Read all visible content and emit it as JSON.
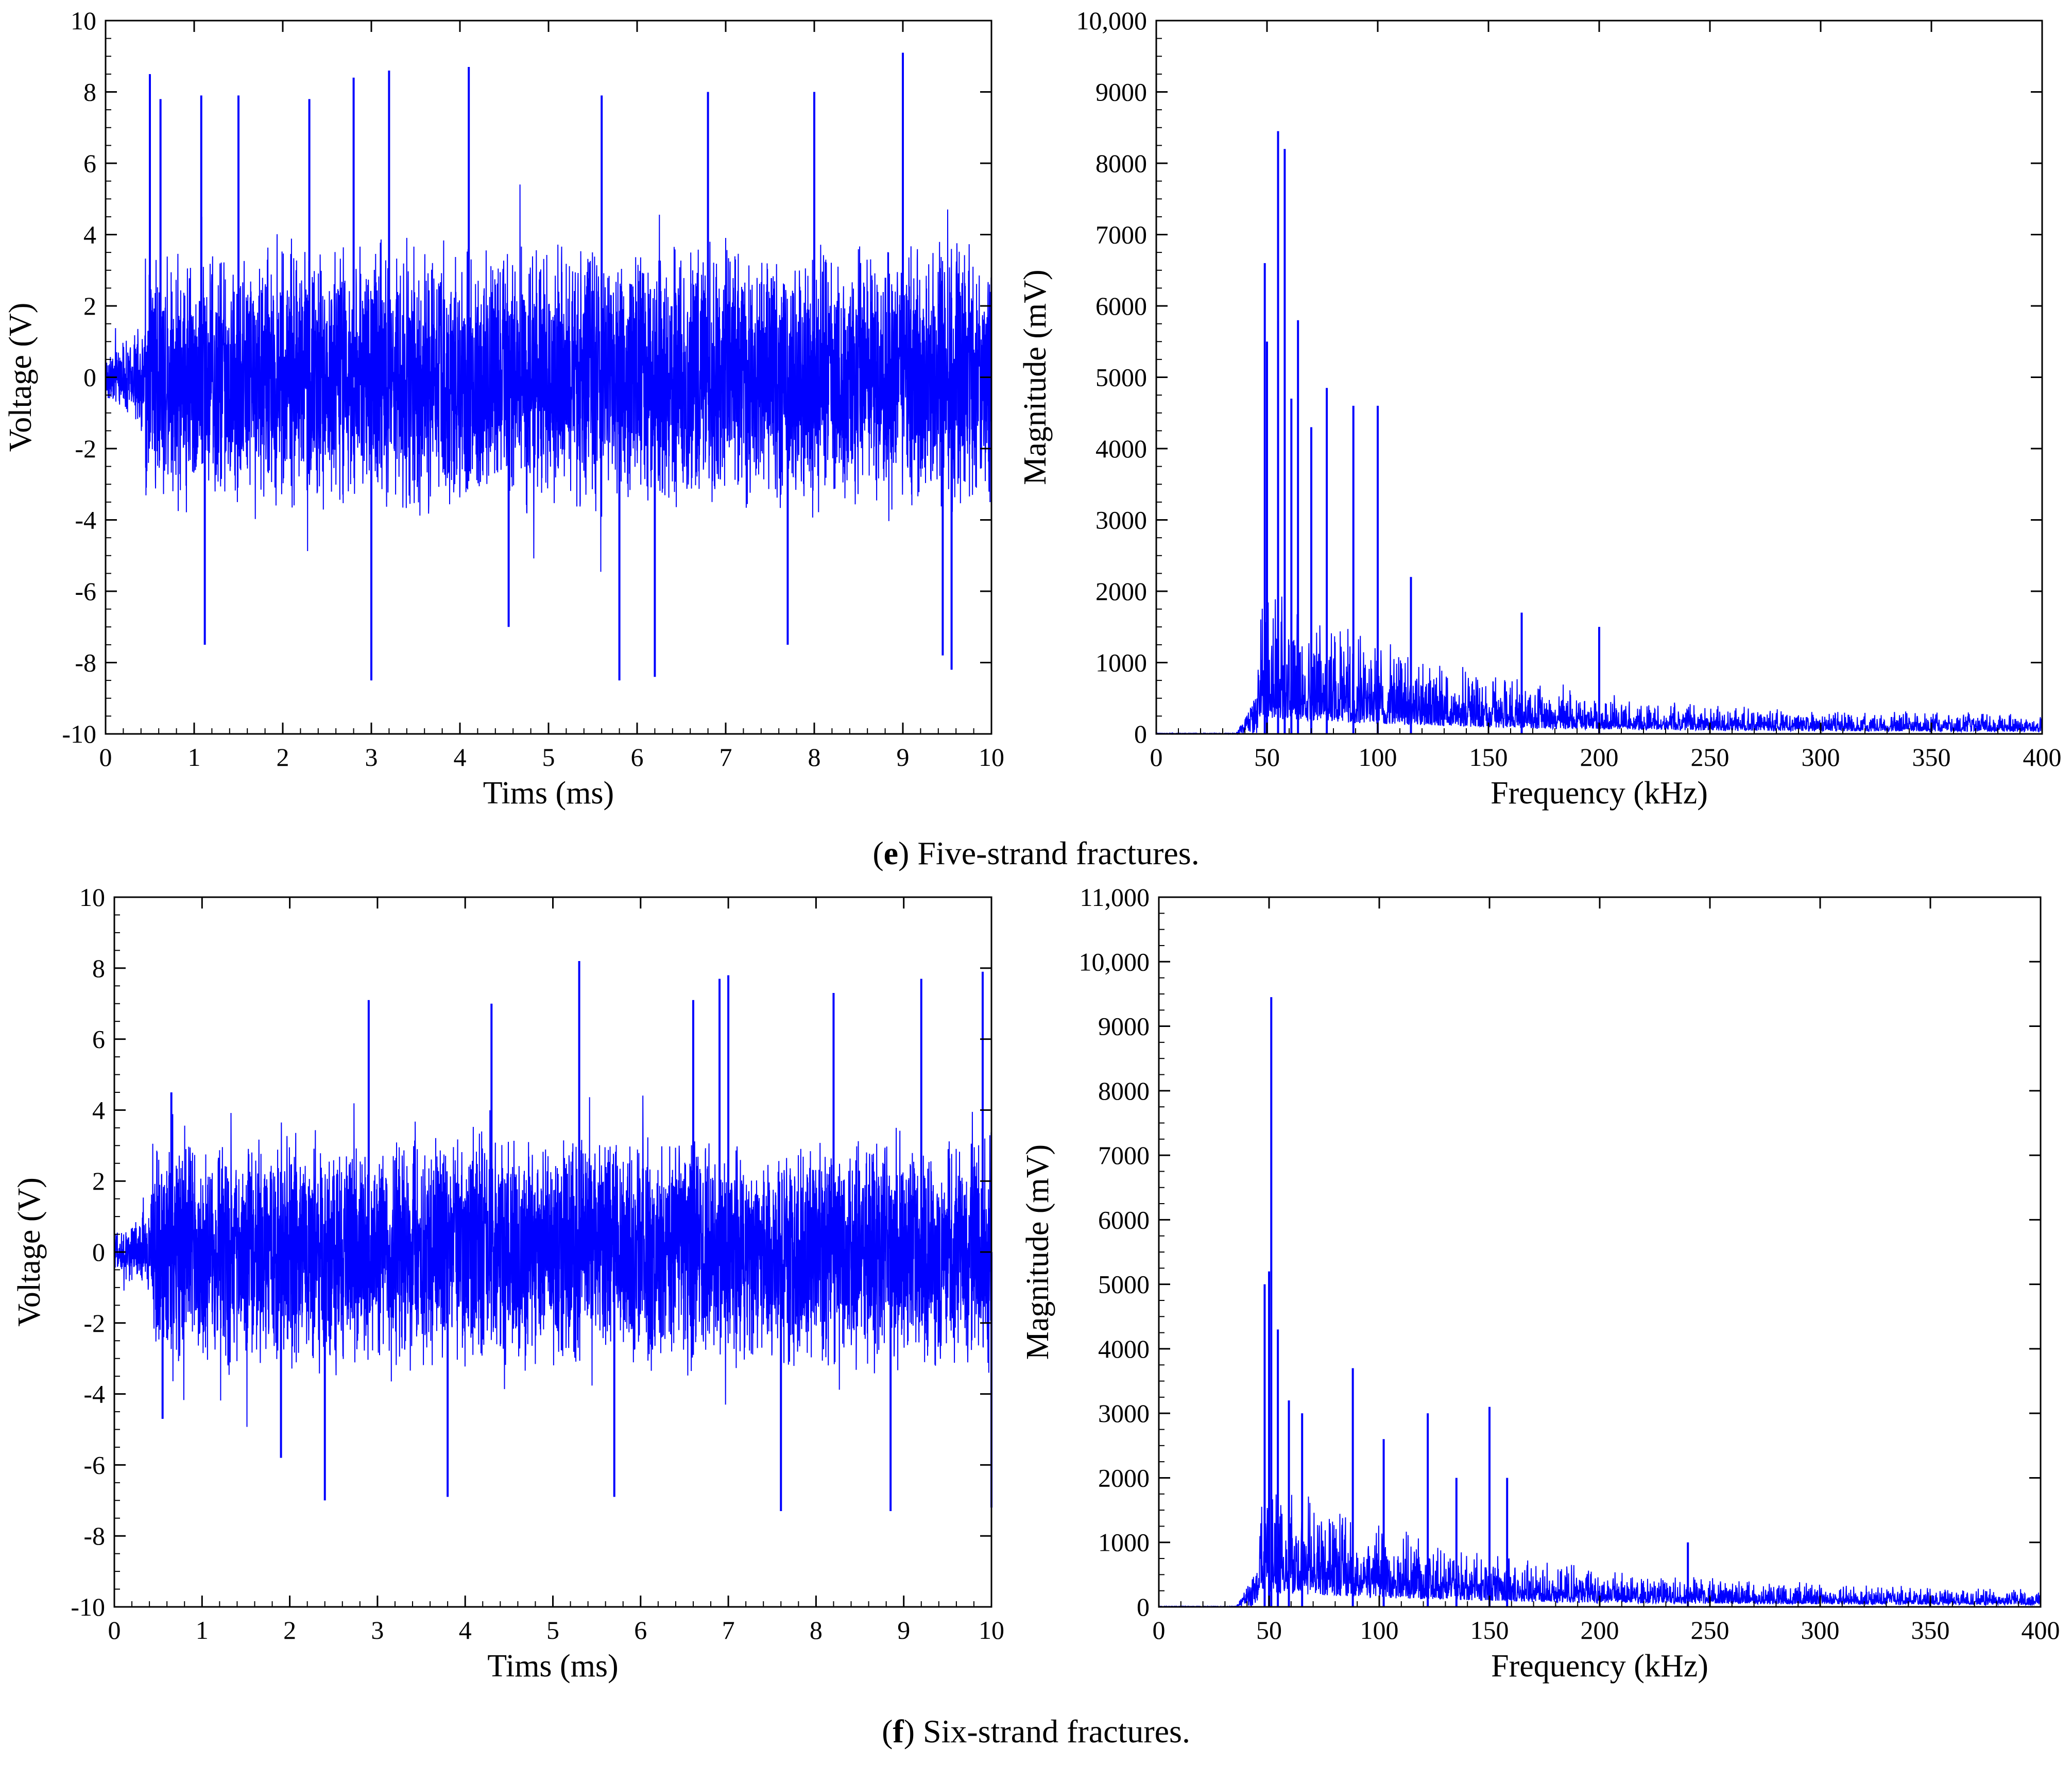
{
  "figure": {
    "captions": [
      {
        "letter": "e",
        "text": "Five-strand fractures."
      },
      {
        "letter": "f",
        "text": "Six-strand fractures."
      }
    ],
    "line_color": "#0000ff"
  },
  "chart_data": [
    {
      "id": "e-time",
      "type": "line",
      "xlabel": "Tims (ms)",
      "ylabel": "Voltage (V)",
      "xlim": [
        0,
        10
      ],
      "ylim": [
        -10,
        10
      ],
      "xticks": [
        "0",
        "1",
        "2",
        "3",
        "4",
        "5",
        "6",
        "7",
        "8",
        "9",
        "10"
      ],
      "yticks": [
        "-10",
        "-8",
        "-6",
        "-4",
        "-2",
        "0",
        "2",
        "4",
        "6",
        "8",
        "10"
      ],
      "signal": {
        "kind": "time",
        "onset_ms": 0.45,
        "pre_amplitude": 1.2,
        "base_amplitude": 4.0,
        "peaks": [
          [
            0.5,
            8.5
          ],
          [
            0.62,
            7.8
          ],
          [
            1.08,
            7.9
          ],
          [
            1.12,
            -7.5
          ],
          [
            1.5,
            7.9
          ],
          [
            2.3,
            7.8
          ],
          [
            3.0,
            -8.5
          ],
          [
            3.2,
            8.6
          ],
          [
            4.1,
            8.7
          ],
          [
            4.55,
            -7.0
          ],
          [
            5.8,
            -8.5
          ],
          [
            6.2,
            -8.4
          ],
          [
            7.7,
            -7.5
          ],
          [
            9.0,
            9.1
          ],
          [
            9.55,
            -8.2
          ],
          [
            9.45,
            -7.8
          ],
          [
            8.0,
            8.0
          ],
          [
            2.8,
            8.4
          ],
          [
            5.6,
            7.9
          ],
          [
            6.8,
            8.0
          ]
        ]
      }
    },
    {
      "id": "e-freq",
      "type": "line",
      "xlabel": "Frequency (kHz)",
      "ylabel": "Magnitude (mV)",
      "xlim": [
        0,
        400
      ],
      "ylim": [
        0,
        10000
      ],
      "xticks": [
        "0",
        "50",
        "100",
        "150",
        "200",
        "250",
        "300",
        "350",
        "400"
      ],
      "yticks": [
        "0",
        "1000",
        "2000",
        "3000",
        "4000",
        "5000",
        "6000",
        "7000",
        "8000",
        "9000",
        "10,000"
      ],
      "signal": {
        "kind": "spectrum",
        "onset_khz": 46,
        "peaks": [
          [
            49,
            6600
          ],
          [
            50,
            5500
          ],
          [
            55,
            8450
          ],
          [
            58,
            8200
          ],
          [
            61,
            4700
          ],
          [
            64,
            5800
          ],
          [
            70,
            4300
          ],
          [
            77,
            4850
          ],
          [
            89,
            4600
          ],
          [
            100,
            4600
          ],
          [
            115,
            2200
          ],
          [
            165,
            1700
          ],
          [
            200,
            1500
          ]
        ]
      }
    },
    {
      "id": "f-time",
      "type": "line",
      "xlabel": "Tims (ms)",
      "ylabel": "Voltage (V)",
      "xlim": [
        0,
        10
      ],
      "ylim": [
        -10,
        10
      ],
      "xticks": [
        "0",
        "1",
        "2",
        "3",
        "4",
        "5",
        "6",
        "7",
        "8",
        "9",
        "10"
      ],
      "yticks": [
        "-10",
        "-8",
        "-6",
        "-4",
        "-2",
        "0",
        "2",
        "4",
        "6",
        "8",
        "10"
      ],
      "signal": {
        "kind": "time",
        "onset_ms": 0.42,
        "pre_amplitude": 1.0,
        "base_amplitude": 3.5,
        "peaks": [
          [
            0.65,
            4.5
          ],
          [
            0.55,
            -4.7
          ],
          [
            1.9,
            -5.8
          ],
          [
            2.4,
            -7.0
          ],
          [
            2.9,
            7.1
          ],
          [
            3.8,
            -6.9
          ],
          [
            5.3,
            8.2
          ],
          [
            5.7,
            -6.9
          ],
          [
            6.6,
            7.1
          ],
          [
            7.0,
            7.8
          ],
          [
            7.6,
            -7.3
          ],
          [
            8.85,
            -7.3
          ],
          [
            9.2,
            7.7
          ],
          [
            9.9,
            7.9
          ],
          [
            10.0,
            -7.2
          ],
          [
            4.3,
            7.0
          ],
          [
            6.9,
            7.7
          ],
          [
            8.2,
            7.3
          ]
        ]
      }
    },
    {
      "id": "f-freq",
      "type": "line",
      "xlabel": "Frequency (kHz)",
      "ylabel": "Magnitude (mV)",
      "xlim": [
        0,
        400
      ],
      "ylim": [
        0,
        11000
      ],
      "xticks": [
        "0",
        "50",
        "100",
        "150",
        "200",
        "250",
        "300",
        "350",
        "400"
      ],
      "yticks": [
        "0",
        "1000",
        "2000",
        "3000",
        "4000",
        "5000",
        "6000",
        "7000",
        "8000",
        "9000",
        "10,000",
        "11,000"
      ],
      "signal": {
        "kind": "spectrum",
        "onset_khz": 45,
        "peaks": [
          [
            48,
            5000
          ],
          [
            50,
            5200
          ],
          [
            51,
            9450
          ],
          [
            54,
            4300
          ],
          [
            59,
            3200
          ],
          [
            65,
            3000
          ],
          [
            88,
            3700
          ],
          [
            102,
            2600
          ],
          [
            122,
            3000
          ],
          [
            135,
            2000
          ],
          [
            150,
            3100
          ],
          [
            158,
            2000
          ],
          [
            240,
            1000
          ]
        ]
      }
    }
  ]
}
